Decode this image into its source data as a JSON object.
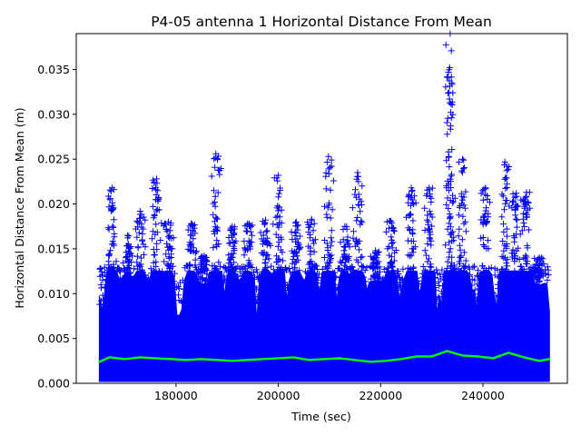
{
  "chart_data": {
    "type": "scatter",
    "title": "P4-05 antenna 1 Horizontal Distance From Mean",
    "xlabel": "Time (sec)",
    "ylabel": "Horizontal Distance From Mean (m)",
    "xlim": [
      160500,
      256500
    ],
    "ylim": [
      0.0,
      0.039
    ],
    "xticks": [
      180000,
      200000,
      220000,
      240000
    ],
    "xtick_labels": [
      "180000",
      "200000",
      "220000",
      "240000"
    ],
    "yticks": [
      0.0,
      0.005,
      0.01,
      0.015,
      0.02,
      0.025,
      0.03,
      0.035
    ],
    "ytick_labels": [
      "0.000",
      "0.005",
      "0.010",
      "0.015",
      "0.020",
      "0.025",
      "0.030",
      "0.035"
    ],
    "grid": false,
    "colors": {
      "points": "#0000ff",
      "mean_line": "#00ff00"
    },
    "series": [
      {
        "marker": "+",
        "color": "#0000ff",
        "x_range": [
          165000,
          253000
        ],
        "baseline_max_m": 0.0125,
        "spikes": [
          {
            "x": 167500,
            "y": 0.0218
          },
          {
            "x": 170500,
            "y": 0.0165
          },
          {
            "x": 173000,
            "y": 0.0192
          },
          {
            "x": 176200,
            "y": 0.0228
          },
          {
            "x": 178500,
            "y": 0.018
          },
          {
            "x": 183000,
            "y": 0.0178
          },
          {
            "x": 185500,
            "y": 0.0142
          },
          {
            "x": 187800,
            "y": 0.0256
          },
          {
            "x": 191000,
            "y": 0.0175
          },
          {
            "x": 194000,
            "y": 0.0178
          },
          {
            "x": 197500,
            "y": 0.0182
          },
          {
            "x": 200000,
            "y": 0.0232
          },
          {
            "x": 203500,
            "y": 0.018
          },
          {
            "x": 206500,
            "y": 0.0183
          },
          {
            "x": 209800,
            "y": 0.0253
          },
          {
            "x": 213000,
            "y": 0.0175
          },
          {
            "x": 215500,
            "y": 0.0235
          },
          {
            "x": 219000,
            "y": 0.0148
          },
          {
            "x": 222000,
            "y": 0.0181
          },
          {
            "x": 226000,
            "y": 0.0218
          },
          {
            "x": 229500,
            "y": 0.0218
          },
          {
            "x": 233500,
            "y": 0.0352
          },
          {
            "x": 233600,
            "y": 0.039
          },
          {
            "x": 236000,
            "y": 0.025
          },
          {
            "x": 240500,
            "y": 0.0218
          },
          {
            "x": 244300,
            "y": 0.0247
          },
          {
            "x": 246500,
            "y": 0.0212
          },
          {
            "x": 248500,
            "y": 0.0213
          },
          {
            "x": 251000,
            "y": 0.014
          }
        ]
      },
      {
        "type": "line",
        "color": "#00ff00",
        "x": [
          165000,
          167000,
          170000,
          173000,
          176000,
          179000,
          182000,
          185000,
          188000,
          191000,
          194000,
          197000,
          200000,
          203000,
          206000,
          209000,
          212000,
          215000,
          218000,
          221000,
          224000,
          227000,
          230000,
          233000,
          236000,
          239000,
          242000,
          245000,
          248000,
          251000,
          253000
        ],
        "y": [
          0.0024,
          0.0029,
          0.0027,
          0.0029,
          0.0028,
          0.0027,
          0.0026,
          0.0027,
          0.0026,
          0.0025,
          0.0026,
          0.0027,
          0.0028,
          0.0029,
          0.0026,
          0.0027,
          0.0028,
          0.0026,
          0.0024,
          0.0025,
          0.0027,
          0.003,
          0.003,
          0.0036,
          0.0031,
          0.003,
          0.0028,
          0.0034,
          0.0029,
          0.0025,
          0.0027
        ]
      }
    ]
  }
}
